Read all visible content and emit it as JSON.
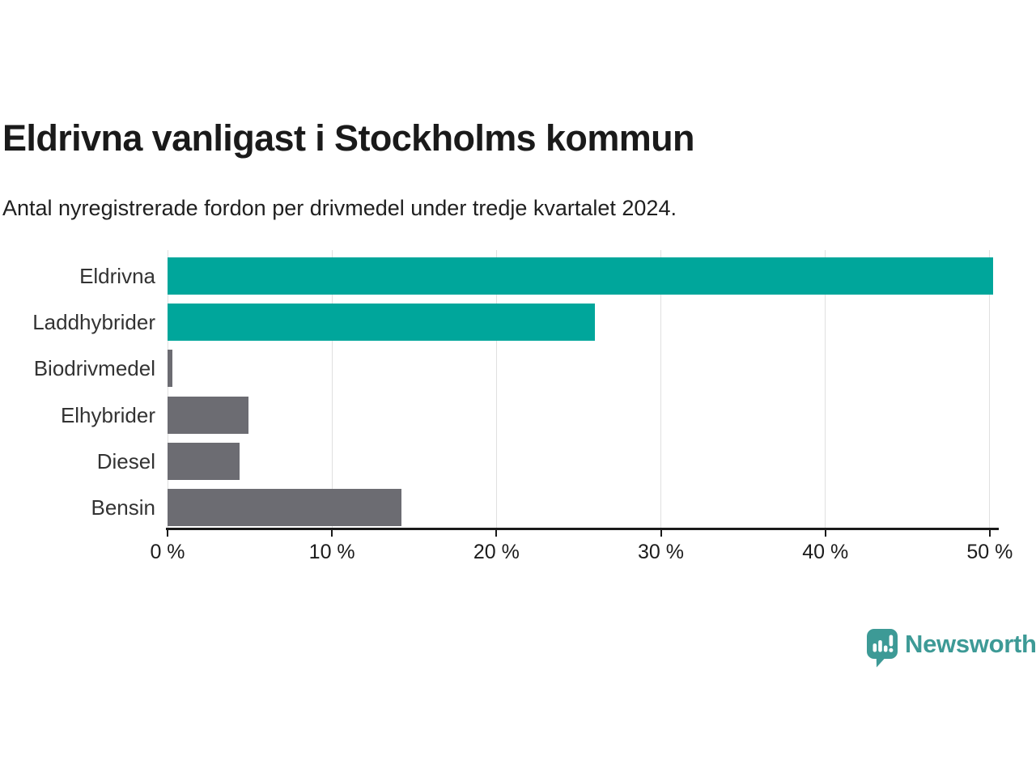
{
  "header": {
    "title": "Eldrivna vanligast i Stockholms kommun",
    "subtitle": "Antal nyregistrerade fordon per drivmedel under tredje kvartalet 2024."
  },
  "chart_data": {
    "type": "bar",
    "orientation": "horizontal",
    "title": "Eldrivna vanligast i Stockholms kommun",
    "subtitle": "Antal nyregistrerade fordon per drivmedel under tredje kvartalet 2024.",
    "categories": [
      "Eldrivna",
      "Laddhybrider",
      "Biodrivmedel",
      "Elhybrider",
      "Diesel",
      "Bensin"
    ],
    "values": [
      50.2,
      26.0,
      0.3,
      4.9,
      4.4,
      14.2
    ],
    "unit": "%",
    "bar_colors": [
      "#00a69b",
      "#00a69b",
      "#6c6c72",
      "#6c6c72",
      "#6c6c72",
      "#6c6c72"
    ],
    "xlim": [
      0,
      50.4
    ],
    "x_ticks": [
      0,
      10,
      20,
      30,
      40,
      50
    ],
    "x_tick_labels": [
      "0 %",
      "10 %",
      "20 %",
      "30 %",
      "40 %",
      "50 %"
    ],
    "grid": true,
    "legend": false
  },
  "branding": {
    "wordmark": "Newsworthy",
    "logo_icon": "newsworthy-bubble-chart-icon",
    "brand_color": "#3d9a96"
  },
  "colors": {
    "highlight": "#00a69b",
    "muted_bar": "#6c6c72",
    "gridline": "#e0e0e0",
    "axis": "#1a1a1a",
    "text": "#1a1a1a"
  }
}
